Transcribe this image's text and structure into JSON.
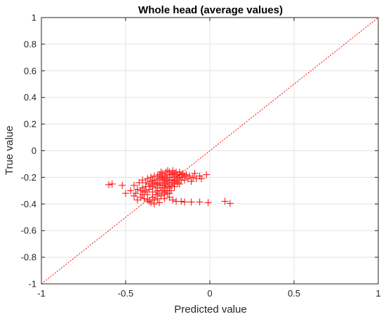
{
  "chart_data": {
    "type": "scatter",
    "title": "Whole head (average values)",
    "xlabel": "Predicted value",
    "ylabel": "True value",
    "xlim": [
      -1,
      1
    ],
    "ylim": [
      -1,
      1
    ],
    "x_ticks": [
      -1,
      -0.5,
      0,
      0.5,
      1
    ],
    "x_tick_labels": [
      "-1",
      "-0.5",
      "0",
      "0.5",
      "1"
    ],
    "y_ticks": [
      -1,
      -0.8,
      -0.6,
      -0.4,
      -0.2,
      0,
      0.2,
      0.4,
      0.6,
      0.8,
      1
    ],
    "y_tick_labels": [
      "-1",
      "-0.8",
      "-0.6",
      "-0.4",
      "-0.2",
      "0",
      "0.2",
      "0.4",
      "0.6",
      "0.8",
      "1"
    ],
    "grid": true,
    "marker": "+",
    "marker_color": "#ff0000",
    "reference_line": {
      "style": "dotted",
      "color": "#ff0000",
      "from": [
        -1,
        -1
      ],
      "to": [
        1,
        1
      ]
    },
    "series": [
      {
        "points": [
          [
            -0.6,
            -0.255
          ],
          [
            -0.58,
            -0.25
          ],
          [
            -0.52,
            -0.26
          ],
          [
            -0.5,
            -0.32
          ],
          [
            -0.47,
            -0.3
          ],
          [
            -0.45,
            -0.26
          ],
          [
            -0.44,
            -0.32
          ],
          [
            -0.43,
            -0.29
          ],
          [
            -0.42,
            -0.24
          ],
          [
            -0.41,
            -0.35
          ],
          [
            -0.4,
            -0.28
          ],
          [
            -0.4,
            -0.22
          ],
          [
            -0.39,
            -0.36
          ],
          [
            -0.39,
            -0.31
          ],
          [
            -0.38,
            -0.27
          ],
          [
            -0.38,
            -0.24
          ],
          [
            -0.37,
            -0.21
          ],
          [
            -0.37,
            -0.33
          ],
          [
            -0.36,
            -0.38
          ],
          [
            -0.36,
            -0.29
          ],
          [
            -0.35,
            -0.26
          ],
          [
            -0.35,
            -0.23
          ],
          [
            -0.35,
            -0.2
          ],
          [
            -0.34,
            -0.35
          ],
          [
            -0.34,
            -0.31
          ],
          [
            -0.34,
            -0.27
          ],
          [
            -0.33,
            -0.24
          ],
          [
            -0.33,
            -0.19
          ],
          [
            -0.33,
            -0.4
          ],
          [
            -0.32,
            -0.33
          ],
          [
            -0.32,
            -0.28
          ],
          [
            -0.32,
            -0.22
          ],
          [
            -0.31,
            -0.25
          ],
          [
            -0.31,
            -0.3
          ],
          [
            -0.31,
            -0.36
          ],
          [
            -0.3,
            -0.21
          ],
          [
            -0.3,
            -0.26
          ],
          [
            -0.3,
            -0.32
          ],
          [
            -0.3,
            -0.18
          ],
          [
            -0.29,
            -0.24
          ],
          [
            -0.29,
            -0.28
          ],
          [
            -0.29,
            -0.34
          ],
          [
            -0.29,
            -0.2
          ],
          [
            -0.28,
            -0.22
          ],
          [
            -0.28,
            -0.26
          ],
          [
            -0.28,
            -0.3
          ],
          [
            -0.28,
            -0.17
          ],
          [
            -0.27,
            -0.19
          ],
          [
            -0.27,
            -0.24
          ],
          [
            -0.27,
            -0.28
          ],
          [
            -0.27,
            -0.33
          ],
          [
            -0.26,
            -0.21
          ],
          [
            -0.26,
            -0.25
          ],
          [
            -0.26,
            -0.16
          ],
          [
            -0.26,
            -0.3
          ],
          [
            -0.25,
            -0.18
          ],
          [
            -0.25,
            -0.22
          ],
          [
            -0.25,
            -0.27
          ],
          [
            -0.25,
            -0.32
          ],
          [
            -0.24,
            -0.2
          ],
          [
            -0.24,
            -0.24
          ],
          [
            -0.24,
            -0.16
          ],
          [
            -0.24,
            -0.28
          ],
          [
            -0.23,
            -0.18
          ],
          [
            -0.23,
            -0.22
          ],
          [
            -0.23,
            -0.26
          ],
          [
            -0.22,
            -0.15
          ],
          [
            -0.22,
            -0.2
          ],
          [
            -0.22,
            -0.24
          ],
          [
            -0.21,
            -0.17
          ],
          [
            -0.21,
            -0.22
          ],
          [
            -0.21,
            -0.27
          ],
          [
            -0.2,
            -0.16
          ],
          [
            -0.2,
            -0.19
          ],
          [
            -0.2,
            -0.23
          ],
          [
            -0.19,
            -0.18
          ],
          [
            -0.19,
            -0.21
          ],
          [
            -0.18,
            -0.16
          ],
          [
            -0.18,
            -0.2
          ],
          [
            -0.18,
            -0.25
          ],
          [
            -0.17,
            -0.18
          ],
          [
            -0.17,
            -0.22
          ],
          [
            -0.16,
            -0.17
          ],
          [
            -0.16,
            -0.2
          ],
          [
            -0.15,
            -0.19
          ],
          [
            -0.15,
            -0.22
          ],
          [
            -0.14,
            -0.18
          ],
          [
            -0.13,
            -0.21
          ],
          [
            -0.12,
            -0.19
          ],
          [
            -0.11,
            -0.23
          ],
          [
            -0.1,
            -0.2
          ],
          [
            -0.09,
            -0.17
          ],
          [
            -0.08,
            -0.21
          ],
          [
            -0.06,
            -0.19
          ],
          [
            -0.05,
            -0.21
          ],
          [
            -0.02,
            -0.18
          ],
          [
            -0.37,
            -0.37
          ],
          [
            -0.35,
            -0.39
          ],
          [
            -0.33,
            -0.37
          ],
          [
            -0.3,
            -0.39
          ],
          [
            -0.27,
            -0.36
          ],
          [
            -0.24,
            -0.35
          ],
          [
            -0.22,
            -0.37
          ],
          [
            -0.2,
            -0.38
          ],
          [
            -0.17,
            -0.38
          ],
          [
            -0.15,
            -0.385
          ],
          [
            -0.11,
            -0.385
          ],
          [
            -0.06,
            -0.385
          ],
          [
            -0.01,
            -0.39
          ],
          [
            0.09,
            -0.38
          ],
          [
            0.12,
            -0.395
          ],
          [
            -0.45,
            -0.34
          ],
          [
            -0.43,
            -0.37
          ],
          [
            -0.41,
            -0.3
          ],
          [
            -0.32,
            -0.25
          ],
          [
            -0.28,
            -0.2
          ],
          [
            -0.26,
            -0.23
          ],
          [
            -0.23,
            -0.3
          ],
          [
            -0.21,
            -0.25
          ],
          [
            -0.19,
            -0.24
          ],
          [
            -0.34,
            -0.22
          ],
          [
            -0.31,
            -0.19
          ],
          [
            -0.29,
            -0.16
          ],
          [
            -0.25,
            -0.15
          ],
          [
            -0.22,
            -0.17
          ],
          [
            -0.36,
            -0.25
          ],
          [
            -0.38,
            -0.3
          ],
          [
            -0.4,
            -0.33
          ],
          [
            -0.27,
            -0.31
          ],
          [
            -0.24,
            -0.32
          ]
        ]
      }
    ]
  }
}
